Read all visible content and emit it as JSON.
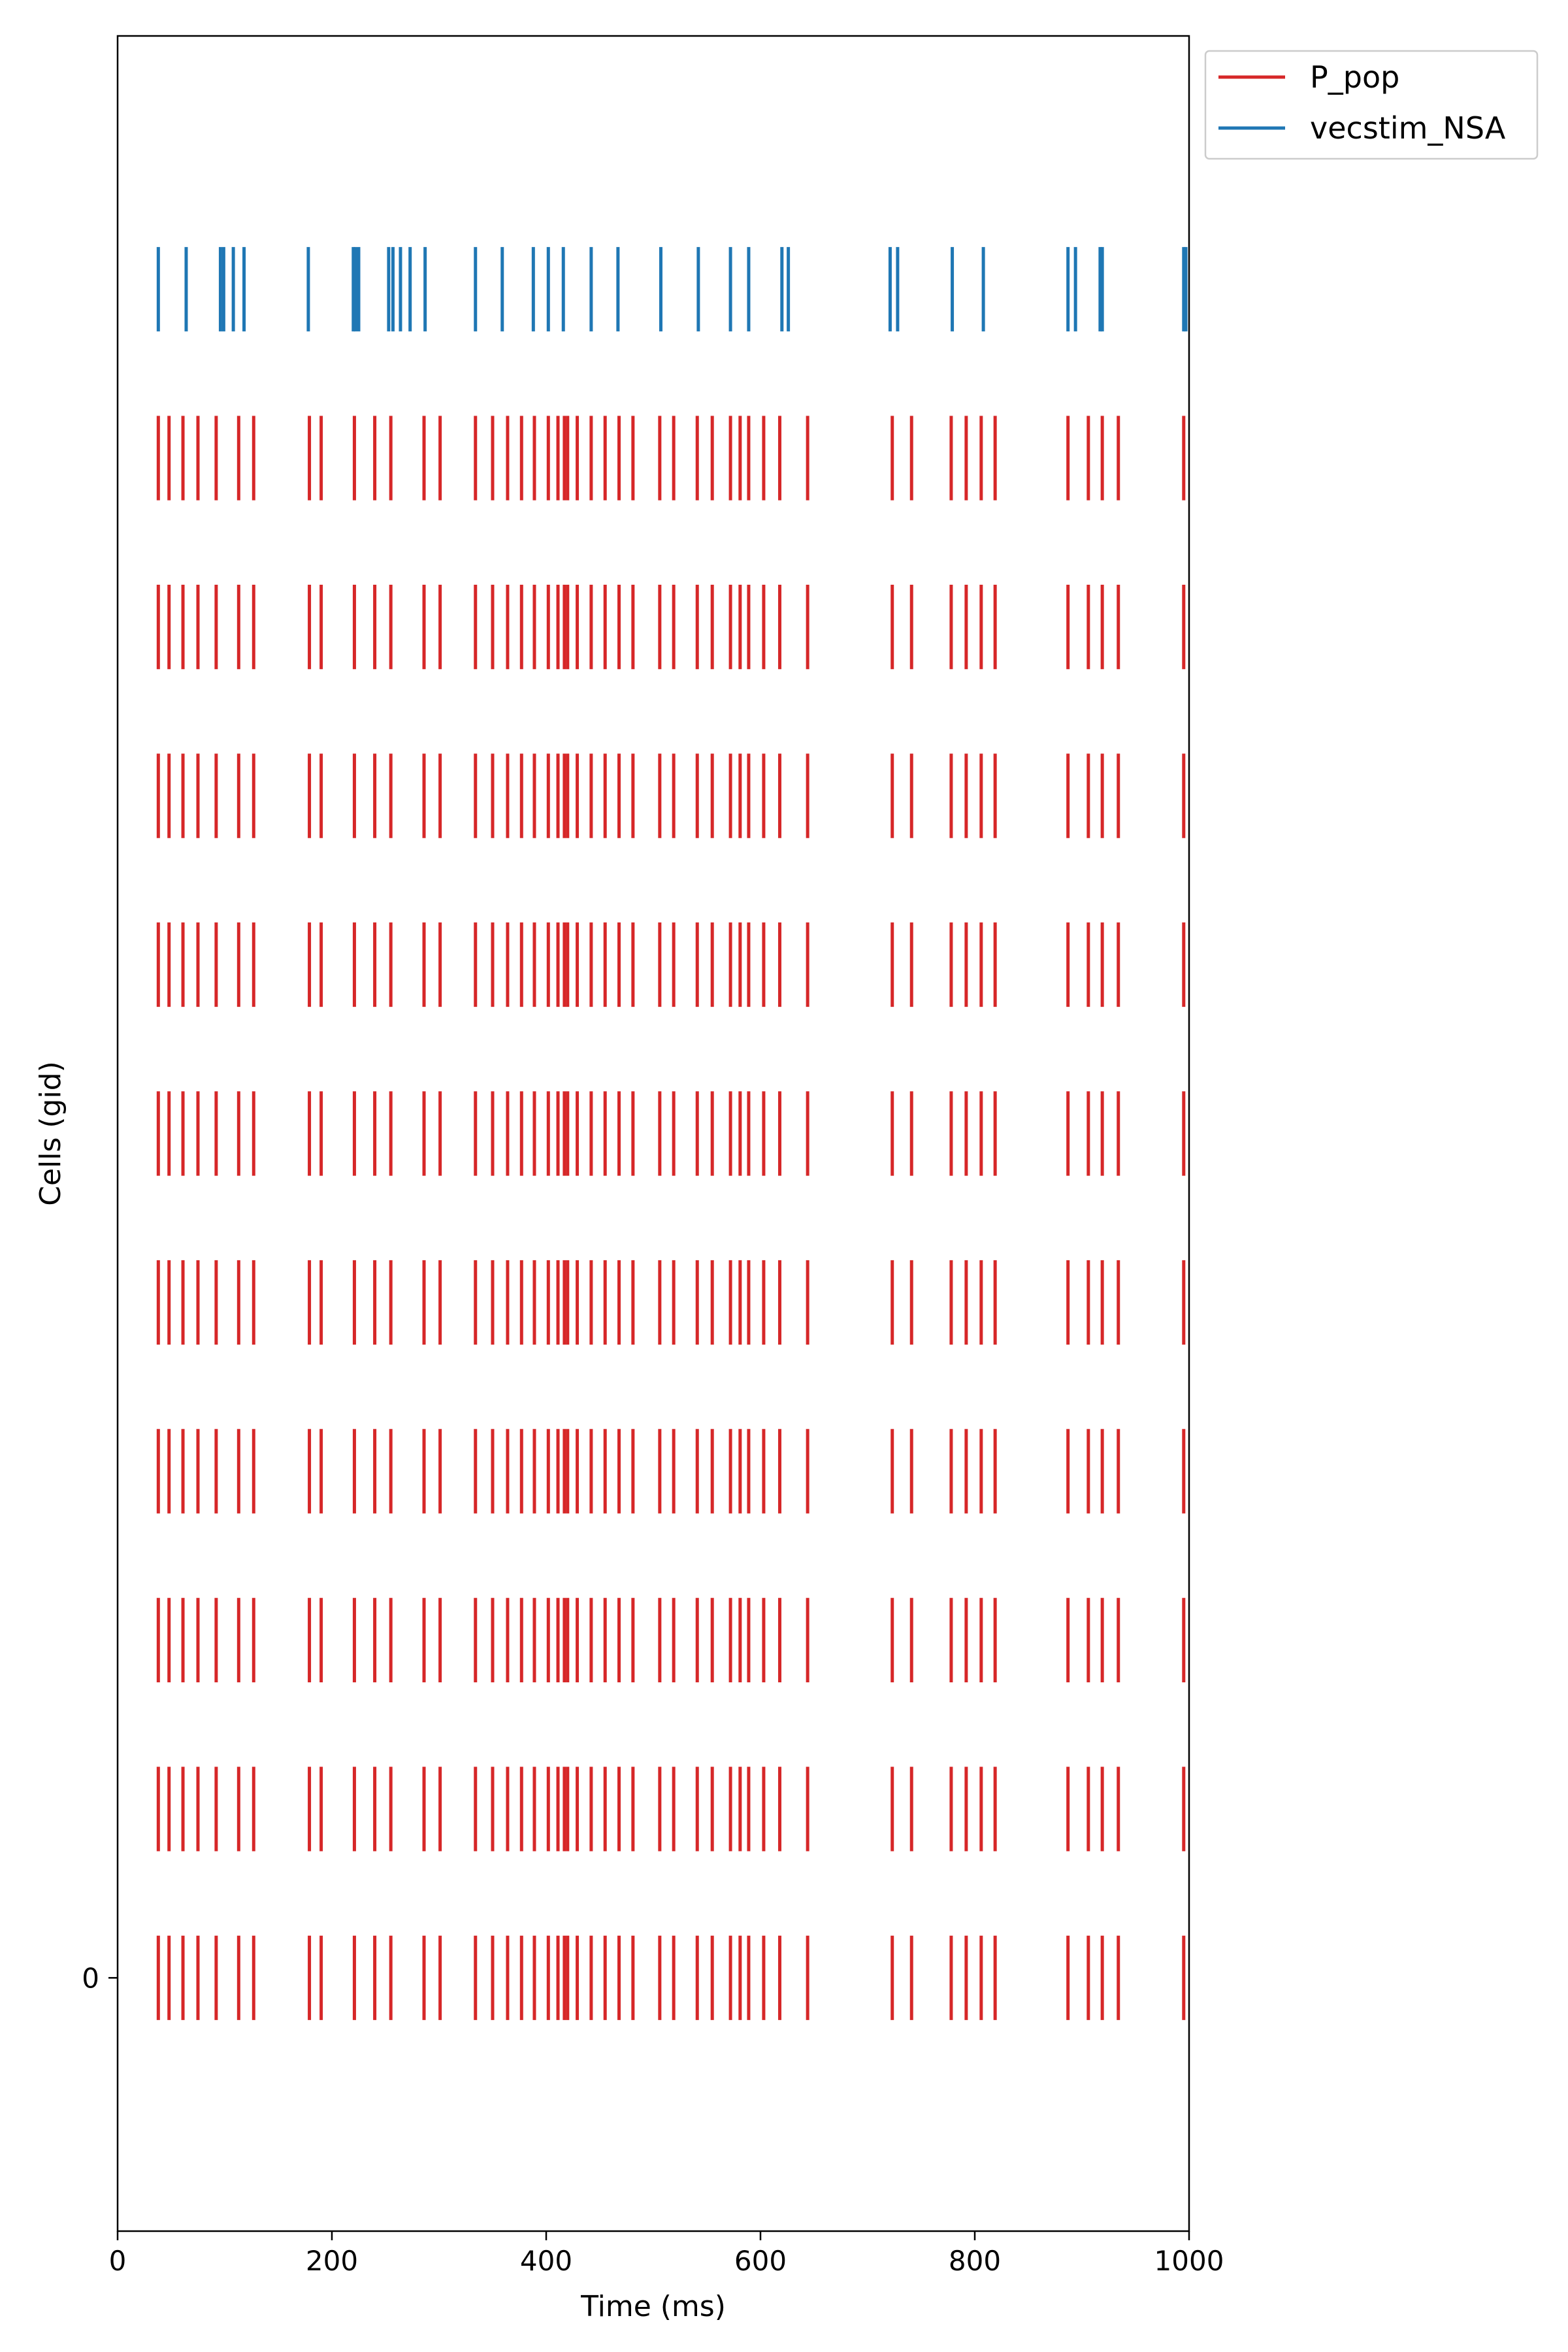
{
  "chart_data": {
    "type": "raster",
    "title": "",
    "xlabel": "Time (ms)",
    "ylabel": "Cells (gid)",
    "xlim": [
      0,
      1000
    ],
    "xticks": [
      0,
      200,
      400,
      600,
      800,
      1000
    ],
    "yticks": [
      {
        "value": 0,
        "label": "0"
      }
    ],
    "ylim": [
      -1.5,
      11.5
    ],
    "legend": {
      "placement": "upper-right-outside"
    },
    "series": [
      {
        "name": "P_pop",
        "color": "#d62728",
        "rows": [
          0,
          1,
          2,
          3,
          4,
          5,
          6,
          7,
          8,
          9
        ],
        "spike_times": [
          38,
          48,
          61,
          75,
          92,
          113,
          127,
          179,
          190,
          221,
          240,
          255,
          286,
          301,
          334,
          350,
          364,
          377,
          389,
          402,
          411,
          417,
          420,
          429,
          442,
          455,
          468,
          481,
          506,
          519,
          541,
          555,
          572,
          581,
          589,
          603,
          618,
          644,
          723,
          741,
          778,
          792,
          806,
          819,
          887,
          906,
          919,
          934,
          995
        ]
      },
      {
        "name": "vecstim_NSA",
        "color": "#1f77b4",
        "rows": [
          10
        ],
        "spike_times": [
          38,
          64,
          96,
          99,
          108,
          118,
          178,
          220,
          222,
          225,
          253,
          257,
          264,
          273,
          287,
          334,
          359,
          388,
          402,
          416,
          442,
          467,
          507,
          542,
          572,
          589,
          620,
          626,
          721,
          728,
          779,
          808,
          887,
          894,
          917,
          919,
          995,
          997
        ]
      }
    ]
  }
}
